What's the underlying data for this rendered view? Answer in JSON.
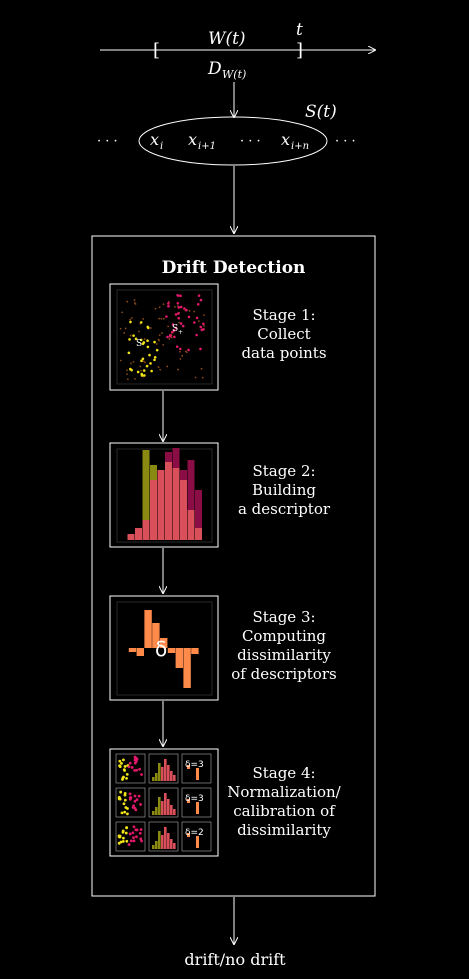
{
  "diagram": {
    "window_label": "W(t)",
    "time_label": "t",
    "data_label": "D",
    "data_label_sub": "W(t)",
    "stream_label": "S(t)",
    "stream_items": [
      "x",
      "x",
      "x"
    ],
    "stream_item_subs": [
      "i",
      "i+1",
      "i+n"
    ],
    "ellipsis": "· · ·",
    "title": "Drift Detection",
    "stages": [
      {
        "line1": "Stage 1:",
        "line2": "Collect",
        "line3": "data points"
      },
      {
        "line1": "Stage 2:",
        "line2": "Building",
        "line3": "a descriptor"
      },
      {
        "line1": "Stage 3:",
        "line2": "Computing",
        "line3": "dissimilarity",
        "line4": "of descriptors"
      },
      {
        "line1": "Stage 4:",
        "line2": "Normalization/",
        "line3": "calibration of",
        "line4": "dissimilarity"
      }
    ],
    "scatter_labels": [
      "S",
      "S"
    ],
    "scatter_label_subs": [
      "",
      "+"
    ],
    "delta_label": "δ",
    "stage4_deltas": [
      "δ=3",
      "δ=3",
      "δ=2"
    ],
    "output": "drift/no drift"
  },
  "colors": {
    "background": "#000000",
    "olive": "#8a8a12",
    "salmon": "#d9505a",
    "maroon": "#8a0e45",
    "orange": "#ff8a4a",
    "yellow": "#f2e316",
    "magenta": "#e0186a",
    "brown": "#8a4a1a"
  }
}
